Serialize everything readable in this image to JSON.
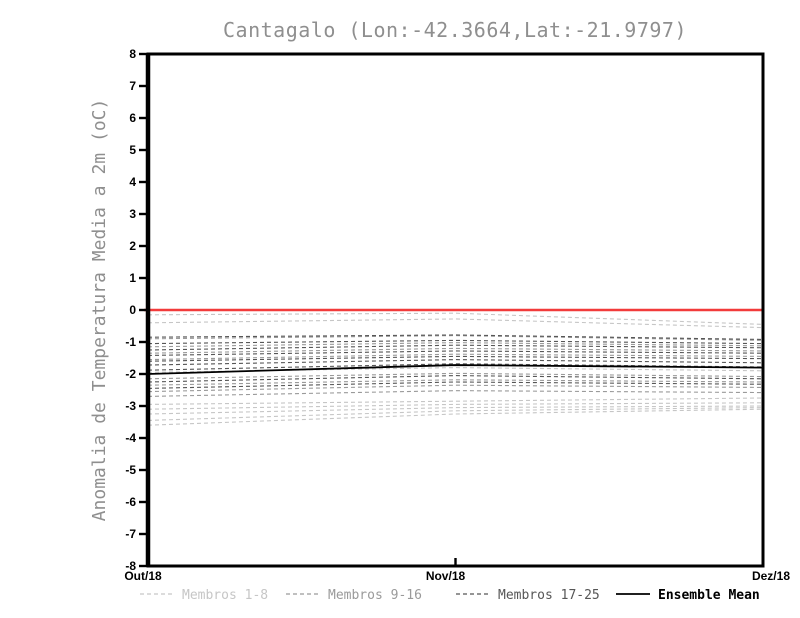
{
  "title": "Cantagalo (Lon:-42.3664,Lat:-21.9797)",
  "y_axis_label": "Anomalia de Temperatura Media a 2m (oC)",
  "colors": {
    "zero_line": "#f23b3b",
    "axis": "#000000",
    "group_light": "#c6c6c6",
    "group_medium": "#9a9a9a",
    "group_dark": "#565656",
    "mean": "#000000",
    "title": "#8f8f8f"
  },
  "chart_data": {
    "type": "line",
    "title": "Cantagalo (Lon:-42.3664,Lat:-21.9797)",
    "xlabel": "",
    "ylabel": "Anomalia de Temperatura Media a 2m (oC)",
    "x_categories": [
      "Out/18",
      "Nov/18",
      "Dez/18"
    ],
    "y_ticks": [
      8,
      7,
      6,
      5,
      4,
      3,
      2,
      1,
      0,
      -1,
      -2,
      -3,
      -4,
      -5,
      -6,
      -7,
      -8
    ],
    "ylim": [
      -8,
      8
    ],
    "grid": false,
    "legend_position": "bottom",
    "zero_line": {
      "value": 0,
      "color": "#f23b3b"
    },
    "groups": [
      {
        "name": "Membros 1-8",
        "color": "#c6c6c6",
        "style": "dashed",
        "members": [
          [
            -0.15,
            -0.1,
            -0.45
          ],
          [
            -0.4,
            -0.28,
            -0.55
          ],
          [
            -1.95,
            -1.8,
            -1.9
          ],
          [
            -2.95,
            -2.85,
            -2.75
          ],
          [
            -3.1,
            -2.95,
            -2.9
          ],
          [
            -3.25,
            -3.05,
            -3.0
          ],
          [
            -3.45,
            -3.15,
            -3.05
          ],
          [
            -3.6,
            -3.25,
            -3.1
          ]
        ]
      },
      {
        "name": "Membros 9-16",
        "color": "#9a9a9a",
        "style": "dashed",
        "members": [
          [
            -0.9,
            -0.8,
            -0.95
          ],
          [
            -1.15,
            -1.02,
            -1.12
          ],
          [
            -1.35,
            -1.2,
            -1.28
          ],
          [
            -1.55,
            -1.38,
            -1.45
          ],
          [
            -2.15,
            -1.98,
            -2.08
          ],
          [
            -2.35,
            -2.18,
            -2.25
          ],
          [
            -2.55,
            -2.35,
            -2.42
          ],
          [
            -2.7,
            -2.52,
            -2.58
          ]
        ]
      },
      {
        "name": "Membros 17-25",
        "color": "#565656",
        "style": "dashed",
        "members": [
          [
            -0.85,
            -0.78,
            -0.92
          ],
          [
            -1.05,
            -0.95,
            -1.05
          ],
          [
            -1.25,
            -1.1,
            -1.18
          ],
          [
            -1.42,
            -1.28,
            -1.35
          ],
          [
            -1.6,
            -1.45,
            -1.52
          ],
          [
            -1.72,
            -1.55,
            -1.65
          ],
          [
            -1.88,
            -1.68,
            -1.78
          ],
          [
            -2.25,
            -2.05,
            -2.15
          ],
          [
            -2.45,
            -2.25,
            -2.32
          ]
        ]
      }
    ],
    "mean_series": {
      "name": "Ensemble Mean",
      "color": "#000000",
      "style": "solid",
      "values": [
        -2.0,
        -1.72,
        -1.8
      ]
    }
  },
  "legend": {
    "items": [
      {
        "label": "Membros 1-8",
        "color": "#c6c6c6",
        "style": "dashed"
      },
      {
        "label": "Membros 9-16",
        "color": "#9a9a9a",
        "style": "dashed"
      },
      {
        "label": "Membros 17-25",
        "color": "#565656",
        "style": "dashed"
      },
      {
        "label": "Ensemble Mean",
        "color": "#000000",
        "style": "solid"
      }
    ]
  }
}
